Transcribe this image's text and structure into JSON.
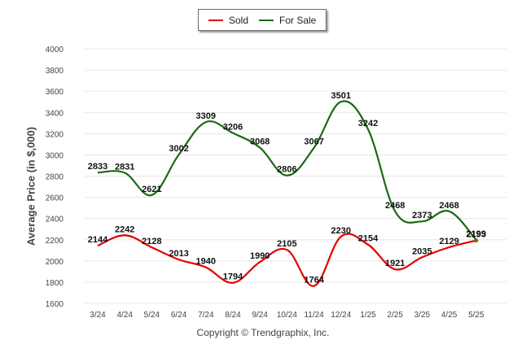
{
  "legend": {
    "sold": "Sold",
    "for_sale": "For Sale"
  },
  "footer": {
    "copyright": "Copyright © Trendgraphix, Inc."
  },
  "colors": {
    "sold": "#e00000",
    "for_sale": "#1a6b12",
    "grid": "#e6e6e6"
  },
  "chart_data": {
    "type": "line",
    "title": "",
    "xlabel": "",
    "ylabel": "Average Price (in $,000)",
    "categories": [
      "3/24",
      "4/24",
      "5/24",
      "6/24",
      "7/24",
      "8/24",
      "9/24",
      "10/24",
      "11/24",
      "12/24",
      "1/25",
      "2/25",
      "3/25",
      "4/25",
      "5/25"
    ],
    "ylim": [
      1600,
      4000
    ],
    "yticks": [
      1600,
      1800,
      2000,
      2200,
      2400,
      2600,
      2800,
      3000,
      3200,
      3400,
      3600,
      3800,
      4000
    ],
    "grid": true,
    "legend_position": "top-center",
    "series": [
      {
        "name": "Sold",
        "values": [
          2144,
          2242,
          2128,
          2013,
          1940,
          1794,
          1990,
          2105,
          1764,
          2230,
          2154,
          1921,
          2035,
          2129,
          2193
        ]
      },
      {
        "name": "For Sale",
        "values": [
          2833,
          2831,
          2621,
          3002,
          3309,
          3206,
          3068,
          2806,
          3067,
          3501,
          3242,
          2468,
          2373,
          2468,
          2199
        ]
      }
    ]
  }
}
